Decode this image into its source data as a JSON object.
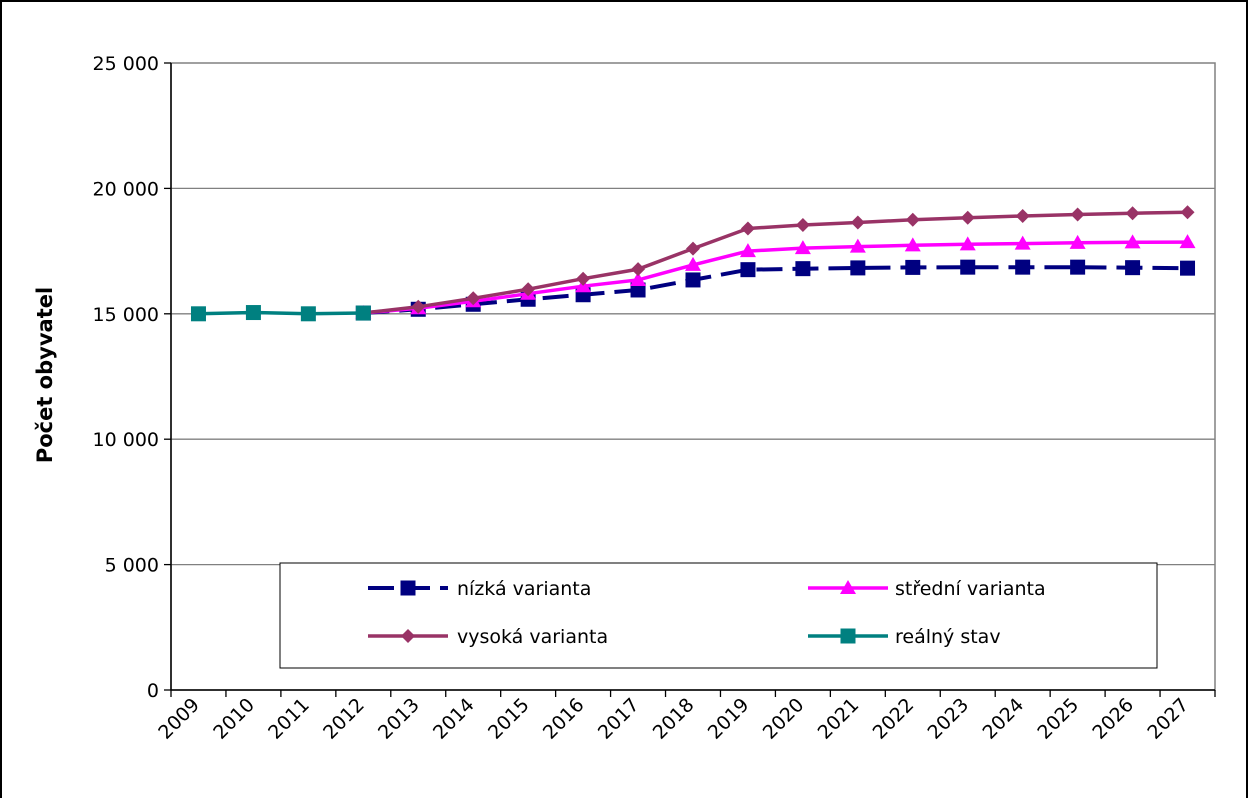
{
  "chart_data": {
    "type": "line",
    "title": "",
    "xlabel": "",
    "ylabel": "Počet obyvatel",
    "categories": [
      "2009",
      "2010",
      "2011",
      "2012",
      "2013",
      "2014",
      "2015",
      "2016",
      "2017",
      "2018",
      "2019",
      "2020",
      "2021",
      "2022",
      "2023",
      "2024",
      "2025",
      "2026",
      "2027"
    ],
    "ylim": [
      0,
      25000
    ],
    "yticks": [
      0,
      5000,
      10000,
      15000,
      20000,
      25000
    ],
    "ytick_labels": [
      "0",
      "5 000",
      "10 000",
      "15 000",
      "20 000",
      "25 000"
    ],
    "grid": true,
    "legend_position": "bottom-center",
    "series": [
      {
        "name": "nízká varianta",
        "color": "#000080",
        "marker": "square",
        "dash": true,
        "values": [
          null,
          null,
          null,
          15030,
          15180,
          15380,
          15580,
          15760,
          15950,
          16350,
          16760,
          16800,
          16830,
          16850,
          16860,
          16860,
          16860,
          16840,
          16820
        ]
      },
      {
        "name": "střední varianta",
        "color": "#ff00ff",
        "marker": "triangle",
        "dash": false,
        "values": [
          null,
          null,
          null,
          15030,
          15220,
          15500,
          15800,
          16100,
          16350,
          16950,
          17500,
          17620,
          17680,
          17730,
          17770,
          17800,
          17830,
          17850,
          17860
        ]
      },
      {
        "name": "vysoká varianta",
        "color": "#993366",
        "marker": "diamond",
        "dash": false,
        "values": [
          null,
          null,
          null,
          15030,
          15280,
          15620,
          15980,
          16400,
          16780,
          17600,
          18400,
          18540,
          18640,
          18750,
          18830,
          18900,
          18960,
          19010,
          19050
        ]
      },
      {
        "name": "reálný stav",
        "color": "#008080",
        "marker": "square",
        "dash": false,
        "values": [
          15000,
          15050,
          15000,
          15030,
          null,
          null,
          null,
          null,
          null,
          null,
          null,
          null,
          null,
          null,
          null,
          null,
          null,
          null,
          null
        ]
      }
    ]
  }
}
